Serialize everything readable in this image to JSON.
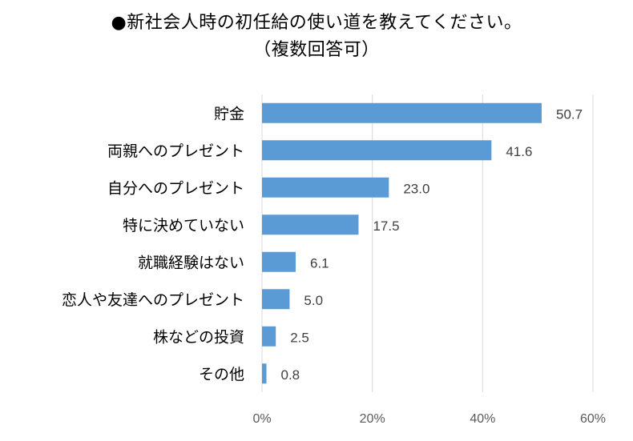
{
  "chart_data": {
    "type": "bar",
    "orientation": "horizontal",
    "title": "●新社会人時の初任給の使い道を教えてください。",
    "subtitle": "（複数回答可）",
    "categories": [
      "貯金",
      "両親へのプレゼント",
      "自分へのプレゼント",
      "特に決めていない",
      "就職経験はない",
      "恋人や友達へのプレゼント",
      "株などの投資",
      "その他"
    ],
    "values": [
      50.7,
      41.6,
      23.0,
      17.5,
      6.1,
      5.0,
      2.5,
      0.8
    ],
    "value_labels": [
      "50.7",
      "41.6",
      "23.0",
      "17.5",
      "6.1",
      "5.0",
      "2.5",
      "0.8"
    ],
    "xlim": [
      0,
      60
    ],
    "xticks": [
      0,
      20,
      40,
      60
    ],
    "xtick_labels": [
      "0%",
      "20%",
      "40%",
      "60%"
    ],
    "xlabel": "",
    "ylabel": "",
    "grid": "vertical",
    "bar_color": "#5b9bd5",
    "grid_color": "#d9d9d9"
  }
}
